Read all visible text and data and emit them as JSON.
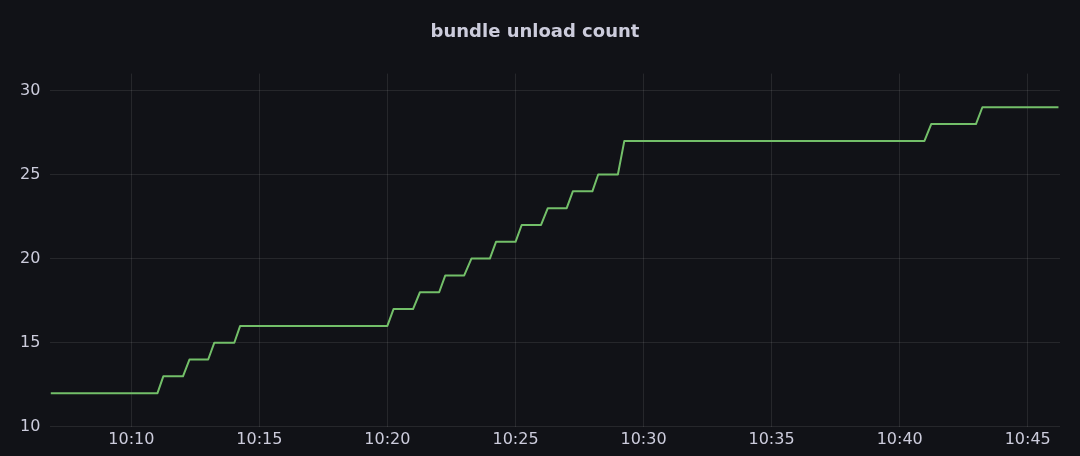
{
  "chart_data": {
    "type": "line",
    "title": "bundle unload count",
    "xlim": [
      10.114,
      10.771
    ],
    "ylim": [
      10,
      31
    ],
    "yticks": [
      10,
      15,
      20,
      25,
      30
    ],
    "xticks": [
      {
        "value": 10.1667,
        "label": "10:10"
      },
      {
        "value": 10.25,
        "label": "10:15"
      },
      {
        "value": 10.3333,
        "label": "10:20"
      },
      {
        "value": 10.4167,
        "label": "10:25"
      },
      {
        "value": 10.5,
        "label": "10:30"
      },
      {
        "value": 10.5833,
        "label": "10:35"
      },
      {
        "value": 10.6667,
        "label": "10:40"
      },
      {
        "value": 10.75,
        "label": "10:45"
      }
    ],
    "grid": true,
    "legend": false,
    "series": [
      {
        "color": "#73bf69",
        "x": [
          10.1142,
          10.1837,
          10.1875,
          10.2003,
          10.2045,
          10.2167,
          10.2207,
          10.2337,
          10.2375,
          10.3333,
          10.3373,
          10.35,
          10.3545,
          10.367,
          10.371,
          10.3833,
          10.388,
          10.4,
          10.404,
          10.4167,
          10.4207,
          10.4333,
          10.4377,
          10.45,
          10.454,
          10.4667,
          10.4705,
          10.4833,
          10.4875,
          10.6828,
          10.6872,
          10.7163,
          10.7205,
          10.77
        ],
        "values": [
          12,
          12,
          13,
          13,
          14,
          14,
          15,
          15,
          16,
          16,
          17,
          17,
          18,
          18,
          19,
          19,
          20,
          20,
          21,
          21,
          22,
          22,
          23,
          23,
          24,
          24,
          25,
          25,
          27,
          27,
          28,
          28,
          29,
          29
        ]
      }
    ]
  }
}
